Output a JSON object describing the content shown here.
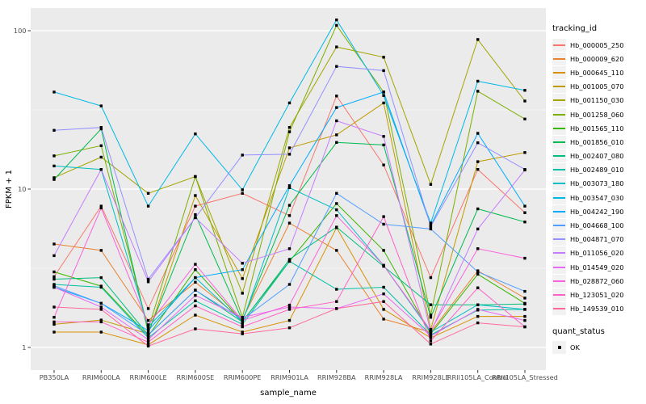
{
  "chart_data": {
    "type": "line",
    "title": "",
    "xlabel": "sample_name",
    "ylabel": "FPKM + 1",
    "y_scale": "log10",
    "y_ticks": [
      1,
      10,
      100
    ],
    "y_minor_ticks": [
      3.1623,
      31.623
    ],
    "ylim_log": [
      0.67,
      145
    ],
    "grid": "white-on-gray",
    "legend_position": "right",
    "legend_titles": {
      "color": "tracking_id",
      "shape": "quant_status"
    },
    "quant_status_values": [
      "OK"
    ],
    "point_shape": "filled-square",
    "point_color": "#000000",
    "panel_bg": "#EBEBEB",
    "grid_color": "#FFFFFF",
    "tick_label_color": "#4D4D4D",
    "categories": [
      "PB350LA",
      "RRIM600LA",
      "RRIM600LE",
      "RRIM600SE",
      "RRIM600PE",
      "RRIM901LA",
      "RRIM928BA",
      "RRIM928LA",
      "RRIM928LE",
      "RRII105LA_Control",
      "RRII105LA_Stressed"
    ],
    "series": [
      {
        "name": "Hb_000005_250",
        "color": "#F8766D",
        "values": [
          2.8,
          7.8,
          1.76,
          7.8,
          9.4,
          6.8,
          38.7,
          14.2,
          2.76,
          13.3,
          7.1
        ]
      },
      {
        "name": "Hb_000009_620",
        "color": "#EA8331",
        "values": [
          4.5,
          4.1,
          1.48,
          2.58,
          1.5,
          6.1,
          4.1,
          1.51,
          1.25,
          3.05,
          2.05
        ]
      },
      {
        "name": "Hb_000645_110",
        "color": "#D89000",
        "values": [
          1.25,
          1.25,
          1.04,
          1.6,
          1.25,
          1.48,
          5.7,
          1.74,
          1.15,
          1.57,
          1.57
        ]
      },
      {
        "name": "Hb_001005_070",
        "color": "#C09B00",
        "values": [
          1.4,
          1.49,
          1.22,
          9.1,
          2.72,
          18.2,
          22,
          35,
          1.3,
          14.9,
          17
        ]
      },
      {
        "name": "Hb_001150_030",
        "color": "#A3A500",
        "values": [
          11.8,
          15.9,
          9.4,
          12,
          2.2,
          24.5,
          79,
          68,
          10.7,
          88,
          36
        ]
      },
      {
        "name": "Hb_001258_060",
        "color": "#7CAE00",
        "values": [
          16.2,
          18.8,
          1.31,
          12,
          1.55,
          23,
          108,
          41,
          1.6,
          41.5,
          27.7
        ]
      },
      {
        "name": "Hb_001565_110",
        "color": "#39B600",
        "values": [
          3.0,
          2.44,
          1.18,
          3.1,
          1.46,
          3.5,
          8.1,
          4.1,
          1.22,
          2.9,
          1.9
        ]
      },
      {
        "name": "Hb_001856_010",
        "color": "#00BB4E",
        "values": [
          11.5,
          24.0,
          1.24,
          6.9,
          1.48,
          7.9,
          19.7,
          19.0,
          1.55,
          7.5,
          6.2
        ]
      },
      {
        "name": "Hb_002407_080",
        "color": "#00BF7D",
        "values": [
          2.7,
          2.76,
          1.2,
          2.3,
          1.45,
          3.6,
          5.75,
          3.25,
          1.86,
          1.86,
          1.88
        ]
      },
      {
        "name": "Hb_002489_010",
        "color": "#00C1A7",
        "values": [
          2.5,
          2.4,
          1.15,
          1.97,
          1.4,
          3.5,
          2.33,
          2.4,
          1.2,
          1.72,
          1.74
        ]
      },
      {
        "name": "Hb_003073_180",
        "color": "#00BFC4",
        "values": [
          14,
          13.3,
          1.35,
          2.76,
          1.45,
          10.2,
          7.4,
          3.3,
          1.25,
          1.86,
          1.74
        ]
      },
      {
        "name": "Hb_003547_030",
        "color": "#00B8E5",
        "values": [
          41,
          33.5,
          7.8,
          22.3,
          9.9,
          35,
          117,
          39,
          6.1,
          48,
          42
        ]
      },
      {
        "name": "Hb_004242_190",
        "color": "#00ACFC",
        "values": [
          2.4,
          1.9,
          1.28,
          2.76,
          3.1,
          10.5,
          32.7,
          41,
          5.9,
          22.5,
          7.8
        ]
      },
      {
        "name": "Hb_004668_100",
        "color": "#529EFF",
        "values": [
          2.45,
          1.9,
          1.2,
          2.3,
          1.5,
          2.5,
          9.4,
          6.0,
          5.6,
          3.0,
          2.26
        ]
      },
      {
        "name": "Hb_004871_070",
        "color": "#9590FF",
        "values": [
          23.5,
          24.5,
          2.7,
          6.6,
          16.4,
          16.6,
          59.5,
          56,
          5.8,
          19.6,
          13.3
        ]
      },
      {
        "name": "Hb_011056_020",
        "color": "#C77CFF",
        "values": [
          3.8,
          13.3,
          2.6,
          6.6,
          3.4,
          4.2,
          27,
          21.5,
          1.25,
          5.6,
          13.2
        ]
      },
      {
        "name": "Hb_014549_020",
        "color": "#E76BF3",
        "values": [
          2.4,
          1.8,
          1.12,
          2.13,
          1.55,
          1.8,
          1.76,
          2.18,
          1.18,
          1.74,
          1.48
        ]
      },
      {
        "name": "Hb_028872_060",
        "color": "#FA62DB",
        "values": [
          1.55,
          7.6,
          1.39,
          3.35,
          1.48,
          1.85,
          6.8,
          3.3,
          1.28,
          4.2,
          3.66
        ]
      },
      {
        "name": "Hb_123051_020",
        "color": "#FF61C7",
        "values": [
          1.45,
          1.45,
          1.08,
          1.83,
          1.35,
          1.74,
          1.95,
          6.7,
          1.1,
          2.38,
          1.35
        ]
      },
      {
        "name": "Hb_149539_010",
        "color": "#FF689E",
        "values": [
          1.8,
          1.74,
          1.02,
          1.31,
          1.22,
          1.33,
          1.76,
          1.95,
          1.05,
          1.43,
          1.35
        ]
      }
    ]
  }
}
